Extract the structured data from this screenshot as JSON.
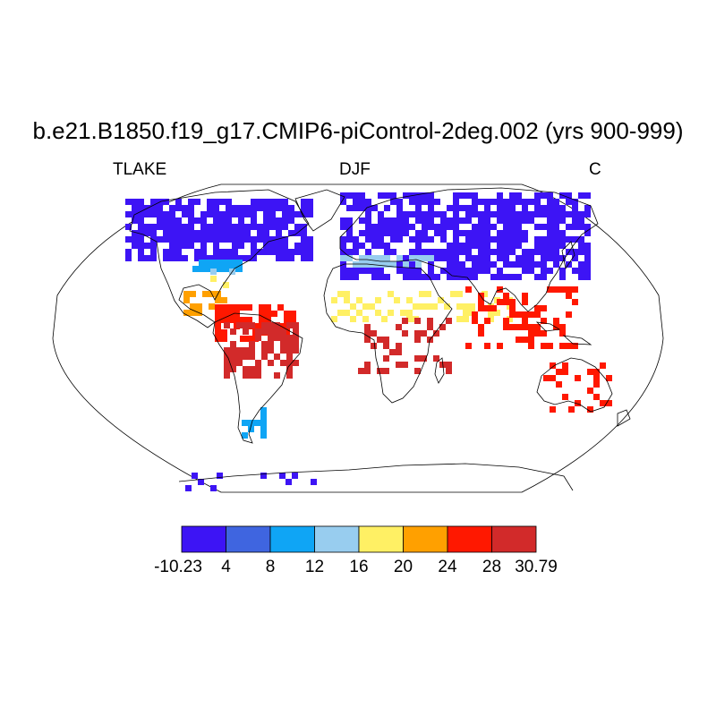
{
  "title": "b.e21.B1850.f19_g17.CMIP6-piControl-2deg.002 (yrs 900-999)",
  "subtitle": {
    "left": "TLAKE",
    "center": "DJF",
    "right": "C"
  },
  "colorbar": {
    "colors": [
      "#3d14f5",
      "#3f65e0",
      "#0fa5f5",
      "#98cdef",
      "#fff064",
      "#ffa000",
      "#ff1800",
      "#d22a2a"
    ],
    "labels": [
      "-10.23",
      "4",
      "8",
      "12",
      "16",
      "20",
      "24",
      "28",
      "30.79"
    ]
  },
  "map": {
    "projection": "robinson",
    "regions": [
      {
        "name": "north-america-north",
        "category": 0
      },
      {
        "name": "us-northern-border",
        "category": 2
      },
      {
        "name": "us-great-lakes",
        "category": 3
      },
      {
        "name": "us-south",
        "category": 4
      },
      {
        "name": "central-america",
        "category": 5
      },
      {
        "name": "amazon",
        "category": 6
      },
      {
        "name": "south-america-east",
        "category": 7
      },
      {
        "name": "patagonia",
        "category": 2
      },
      {
        "name": "eurasia-north",
        "category": 0
      },
      {
        "name": "europe-south",
        "category": 3
      },
      {
        "name": "sahel",
        "category": 4
      },
      {
        "name": "central-africa",
        "category": 7
      },
      {
        "name": "south-asia",
        "category": 6
      },
      {
        "name": "australia-north",
        "category": 6
      },
      {
        "name": "antarctica-coast",
        "category": 0
      }
    ]
  }
}
